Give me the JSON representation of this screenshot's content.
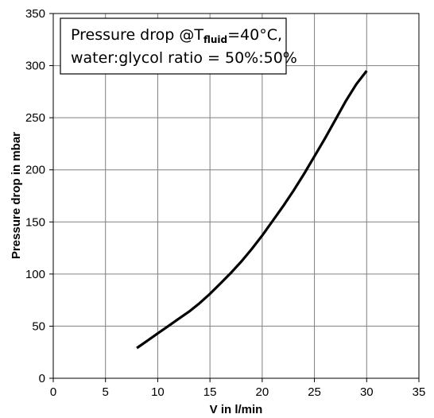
{
  "chart_data": {
    "type": "line",
    "xlabel": "V in l/min",
    "ylabel": "Pressure drop  in  mbar",
    "xlim": [
      0,
      35
    ],
    "ylim": [
      0,
      350
    ],
    "xticks": [
      0,
      5,
      10,
      15,
      20,
      25,
      30,
      35
    ],
    "yticks": [
      0,
      50,
      100,
      150,
      200,
      250,
      300,
      350
    ],
    "grid": true,
    "legend_placement": "top-left",
    "annotation": {
      "line1_prefix": "Pressure drop @T",
      "line1_subscript": "fluid",
      "line1_suffix": "=40°C,",
      "line2": "water:glycol ratio = 50%:50%"
    },
    "series": [
      {
        "color": "#000000",
        "x": [
          8,
          9,
          10,
          11,
          12,
          13,
          14,
          15,
          16,
          17,
          18,
          19,
          20,
          21,
          22,
          23,
          24,
          25,
          26,
          27,
          28,
          29,
          30
        ],
        "y": [
          29,
          36,
          43,
          50,
          57,
          64,
          72,
          81,
          91,
          101,
          112,
          124,
          137,
          151,
          165,
          180,
          196,
          213,
          230,
          248,
          266,
          282,
          295
        ]
      }
    ]
  }
}
